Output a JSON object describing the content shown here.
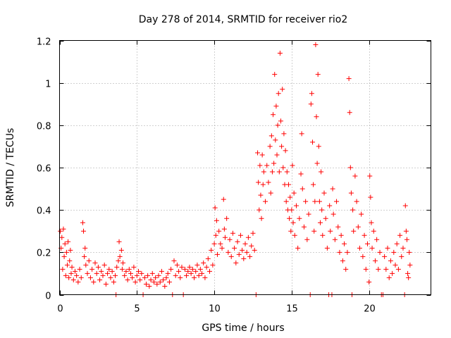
{
  "chart_data": {
    "type": "scatter",
    "title": "Day 278 of 2014, SRMTID for receiver rio2",
    "xlabel": "GPS time / hours",
    "ylabel": "SRMTID / TECUs",
    "xlim": [
      0,
      24
    ],
    "ylim": [
      0,
      1.2
    ],
    "xticks": [
      0,
      5,
      10,
      15,
      20
    ],
    "xtick_labels": [
      "0",
      "5",
      "10",
      "15",
      "20"
    ],
    "yticks": [
      0,
      0.2,
      0.4,
      0.6,
      0.8,
      1.0,
      1.2
    ],
    "ytick_labels": [
      "0",
      "0.2",
      "0.4",
      "0.6",
      "0.8",
      "1",
      "1.2"
    ],
    "grid": true,
    "marker": "+",
    "color": "#ff0000",
    "series": [
      {
        "name": "rio2",
        "points": [
          [
            0.05,
            0.3
          ],
          [
            0.1,
            0.22
          ],
          [
            0.15,
            0.27
          ],
          [
            0.2,
            0.12
          ],
          [
            0.25,
            0.31
          ],
          [
            0.3,
            0.18
          ],
          [
            0.35,
            0.24
          ],
          [
            0.4,
            0.09
          ],
          [
            0.45,
            0.2
          ],
          [
            0.5,
            0.14
          ],
          [
            0.55,
            0.25
          ],
          [
            0.6,
            0.08
          ],
          [
            0.65,
            0.16
          ],
          [
            0.7,
            0.21
          ],
          [
            0.75,
            0.1
          ],
          [
            0.8,
            0.13
          ],
          [
            0.9,
            0.07
          ],
          [
            1.0,
            0.11
          ],
          [
            1.1,
            0.09
          ],
          [
            1.2,
            0.06
          ],
          [
            1.3,
            0.12
          ],
          [
            1.4,
            0.08
          ],
          [
            1.5,
            0.34
          ],
          [
            1.55,
            0.3
          ],
          [
            1.6,
            0.18
          ],
          [
            1.65,
            0.22
          ],
          [
            1.7,
            0.14
          ],
          [
            1.8,
            0.1
          ],
          [
            1.9,
            0.16
          ],
          [
            2.0,
            0.08
          ],
          [
            2.1,
            0.12
          ],
          [
            2.2,
            0.06
          ],
          [
            2.3,
            0.15
          ],
          [
            2.4,
            0.1
          ],
          [
            2.5,
            0.13
          ],
          [
            2.6,
            0.07
          ],
          [
            2.7,
            0.11
          ],
          [
            2.8,
            0.09
          ],
          [
            2.9,
            0.14
          ],
          [
            3.0,
            0.05
          ],
          [
            3.1,
            0.1
          ],
          [
            3.2,
            0.12
          ],
          [
            3.3,
            0.08
          ],
          [
            3.4,
            0.11
          ],
          [
            3.5,
            0.06
          ],
          [
            3.6,
            0.09
          ],
          [
            3.65,
            0.0
          ],
          [
            3.7,
            0.13
          ],
          [
            3.8,
            0.16
          ],
          [
            3.85,
            0.25
          ],
          [
            3.9,
            0.18
          ],
          [
            4.0,
            0.21
          ],
          [
            4.05,
            0.12
          ],
          [
            4.1,
            0.15
          ],
          [
            4.2,
            0.09
          ],
          [
            4.3,
            0.11
          ],
          [
            4.4,
            0.07
          ],
          [
            4.5,
            0.12
          ],
          [
            4.6,
            0.1
          ],
          [
            4.7,
            0.08
          ],
          [
            4.8,
            0.13
          ],
          [
            4.9,
            0.06
          ],
          [
            5.0,
            0.09
          ],
          [
            5.1,
            0.11
          ],
          [
            5.2,
            0.07
          ],
          [
            5.3,
            0.1
          ],
          [
            5.4,
            0.0
          ],
          [
            5.5,
            0.08
          ],
          [
            5.6,
            0.05
          ],
          [
            5.7,
            0.09
          ],
          [
            5.8,
            0.04
          ],
          [
            5.9,
            0.07
          ],
          [
            6.0,
            0.1
          ],
          [
            6.1,
            0.06
          ],
          [
            6.2,
            0.08
          ],
          [
            6.3,
            0.05
          ],
          [
            6.4,
            0.09
          ],
          [
            6.5,
            0.06
          ],
          [
            6.6,
            0.11
          ],
          [
            6.7,
            0.07
          ],
          [
            6.8,
            0.04
          ],
          [
            6.9,
            0.08
          ],
          [
            7.0,
            0.1
          ],
          [
            7.1,
            0.06
          ],
          [
            7.2,
            0.12
          ],
          [
            7.3,
            0.0
          ],
          [
            7.4,
            0.16
          ],
          [
            7.5,
            0.09
          ],
          [
            7.6,
            0.14
          ],
          [
            7.7,
            0.11
          ],
          [
            7.8,
            0.08
          ],
          [
            7.9,
            0.13
          ],
          [
            8.0,
            0.0
          ],
          [
            8.1,
            0.12
          ],
          [
            8.2,
            0.09
          ],
          [
            8.3,
            0.11
          ],
          [
            8.4,
            0.13
          ],
          [
            8.5,
            0.1
          ],
          [
            8.6,
            0.12
          ],
          [
            8.7,
            0.08
          ],
          [
            8.8,
            0.11
          ],
          [
            8.9,
            0.14
          ],
          [
            9.0,
            0.09
          ],
          [
            9.1,
            0.12
          ],
          [
            9.2,
            0.1
          ],
          [
            9.3,
            0.15
          ],
          [
            9.4,
            0.08
          ],
          [
            9.5,
            0.13
          ],
          [
            9.6,
            0.17
          ],
          [
            9.7,
            0.11
          ],
          [
            9.8,
            0.21
          ],
          [
            9.9,
            0.14
          ],
          [
            10.0,
            0.24
          ],
          [
            10.05,
            0.41
          ],
          [
            10.1,
            0.28
          ],
          [
            10.15,
            0.35
          ],
          [
            10.2,
            0.19
          ],
          [
            10.3,
            0.3
          ],
          [
            10.4,
            0.24
          ],
          [
            10.5,
            0.22
          ],
          [
            10.6,
            0.45
          ],
          [
            10.65,
            0.31
          ],
          [
            10.7,
            0.27
          ],
          [
            10.8,
            0.36
          ],
          [
            10.9,
            0.2
          ],
          [
            11.0,
            0.26
          ],
          [
            11.1,
            0.18
          ],
          [
            11.2,
            0.29
          ],
          [
            11.3,
            0.22
          ],
          [
            11.4,
            0.15
          ],
          [
            11.5,
            0.25
          ],
          [
            11.6,
            0.19
          ],
          [
            11.7,
            0.28
          ],
          [
            11.8,
            0.21
          ],
          [
            11.9,
            0.17
          ],
          [
            12.0,
            0.24
          ],
          [
            12.1,
            0.2
          ],
          [
            12.2,
            0.27
          ],
          [
            12.3,
            0.18
          ],
          [
            12.4,
            0.23
          ],
          [
            12.5,
            0.29
          ],
          [
            12.6,
            0.21
          ],
          [
            12.7,
            0.0
          ],
          [
            12.8,
            0.67
          ],
          [
            12.85,
            0.53
          ],
          [
            12.9,
            0.4
          ],
          [
            12.95,
            0.61
          ],
          [
            13.0,
            0.47
          ],
          [
            13.05,
            0.36
          ],
          [
            13.1,
            0.66
          ],
          [
            13.15,
            0.52
          ],
          [
            13.2,
            0.58
          ],
          [
            13.3,
            0.44
          ],
          [
            13.4,
            0.61
          ],
          [
            13.5,
            0.53
          ],
          [
            13.6,
            0.7
          ],
          [
            13.65,
            0.48
          ],
          [
            13.7,
            0.75
          ],
          [
            13.75,
            0.58
          ],
          [
            13.8,
            0.85
          ],
          [
            13.85,
            0.62
          ],
          [
            13.9,
            1.04
          ],
          [
            13.95,
            0.73
          ],
          [
            14.0,
            0.89
          ],
          [
            14.05,
            0.66
          ],
          [
            14.1,
            0.8
          ],
          [
            14.15,
            0.95
          ],
          [
            14.2,
            0.58
          ],
          [
            14.25,
            1.14
          ],
          [
            14.3,
            0.82
          ],
          [
            14.35,
            0.7
          ],
          [
            14.4,
            0.97
          ],
          [
            14.45,
            0.6
          ],
          [
            14.5,
            0.76
          ],
          [
            14.55,
            0.52
          ],
          [
            14.6,
            0.68
          ],
          [
            14.65,
            0.44
          ],
          [
            14.7,
            0.58
          ],
          [
            14.75,
            0.4
          ],
          [
            14.8,
            0.52
          ],
          [
            14.85,
            0.36
          ],
          [
            14.9,
            0.46
          ],
          [
            14.95,
            0.3
          ],
          [
            15.0,
            0.4
          ],
          [
            15.05,
            0.61
          ],
          [
            15.1,
            0.34
          ],
          [
            15.15,
            0.48
          ],
          [
            15.2,
            0.28
          ],
          [
            15.3,
            0.42
          ],
          [
            15.4,
            0.22
          ],
          [
            15.5,
            0.36
          ],
          [
            15.6,
            0.57
          ],
          [
            15.65,
            0.76
          ],
          [
            15.7,
            0.5
          ],
          [
            15.8,
            0.32
          ],
          [
            15.9,
            0.44
          ],
          [
            16.0,
            0.26
          ],
          [
            16.1,
            0.38
          ],
          [
            16.2,
            0.0
          ],
          [
            16.25,
            0.9
          ],
          [
            16.3,
            0.95
          ],
          [
            16.35,
            0.72
          ],
          [
            16.4,
            0.52
          ],
          [
            16.45,
            0.3
          ],
          [
            16.5,
            0.44
          ],
          [
            16.55,
            1.18
          ],
          [
            16.6,
            0.84
          ],
          [
            16.65,
            0.62
          ],
          [
            16.7,
            1.04
          ],
          [
            16.75,
            0.7
          ],
          [
            16.8,
            0.44
          ],
          [
            16.85,
            0.34
          ],
          [
            16.9,
            0.58
          ],
          [
            16.95,
            0.4
          ],
          [
            17.0,
            0.28
          ],
          [
            17.1,
            0.48
          ],
          [
            17.2,
            0.36
          ],
          [
            17.3,
            0.22
          ],
          [
            17.4,
            0.0
          ],
          [
            17.45,
            0.42
          ],
          [
            17.5,
            0.3
          ],
          [
            17.6,
            0.0
          ],
          [
            17.65,
            0.5
          ],
          [
            17.7,
            0.38
          ],
          [
            17.8,
            0.26
          ],
          [
            17.9,
            0.44
          ],
          [
            18.0,
            0.32
          ],
          [
            18.1,
            0.2
          ],
          [
            18.2,
            0.28
          ],
          [
            18.3,
            0.16
          ],
          [
            18.4,
            0.24
          ],
          [
            18.5,
            0.12
          ],
          [
            18.6,
            0.2
          ],
          [
            18.7,
            1.02
          ],
          [
            18.75,
            0.86
          ],
          [
            18.8,
            0.6
          ],
          [
            18.85,
            0.48
          ],
          [
            18.9,
            0.0
          ],
          [
            18.95,
            0.4
          ],
          [
            19.0,
            0.3
          ],
          [
            19.1,
            0.56
          ],
          [
            19.2,
            0.44
          ],
          [
            19.3,
            0.32
          ],
          [
            19.4,
            0.22
          ],
          [
            19.5,
            0.38
          ],
          [
            19.6,
            0.18
          ],
          [
            19.7,
            0.28
          ],
          [
            19.8,
            0.12
          ],
          [
            19.9,
            0.24
          ],
          [
            20.0,
            0.06
          ],
          [
            20.05,
            0.56
          ],
          [
            20.1,
            0.46
          ],
          [
            20.15,
            0.34
          ],
          [
            20.2,
            0.22
          ],
          [
            20.3,
            0.3
          ],
          [
            20.4,
            0.16
          ],
          [
            20.5,
            0.26
          ],
          [
            20.6,
            0.12
          ],
          [
            20.7,
            0.2
          ],
          [
            20.8,
            0.0
          ],
          [
            20.9,
            0.0
          ],
          [
            21.0,
            0.18
          ],
          [
            21.1,
            0.12
          ],
          [
            21.2,
            0.22
          ],
          [
            21.3,
            0.08
          ],
          [
            21.4,
            0.16
          ],
          [
            21.5,
            0.1
          ],
          [
            21.6,
            0.2
          ],
          [
            21.7,
            0.14
          ],
          [
            21.8,
            0.24
          ],
          [
            21.9,
            0.12
          ],
          [
            22.0,
            0.28
          ],
          [
            22.1,
            0.18
          ],
          [
            22.2,
            0.22
          ],
          [
            22.3,
            0.0
          ],
          [
            22.35,
            0.42
          ],
          [
            22.4,
            0.3
          ],
          [
            22.45,
            0.26
          ],
          [
            22.5,
            0.1
          ],
          [
            22.55,
            0.08
          ],
          [
            22.6,
            0.2
          ],
          [
            22.65,
            0.14
          ]
        ]
      }
    ]
  }
}
